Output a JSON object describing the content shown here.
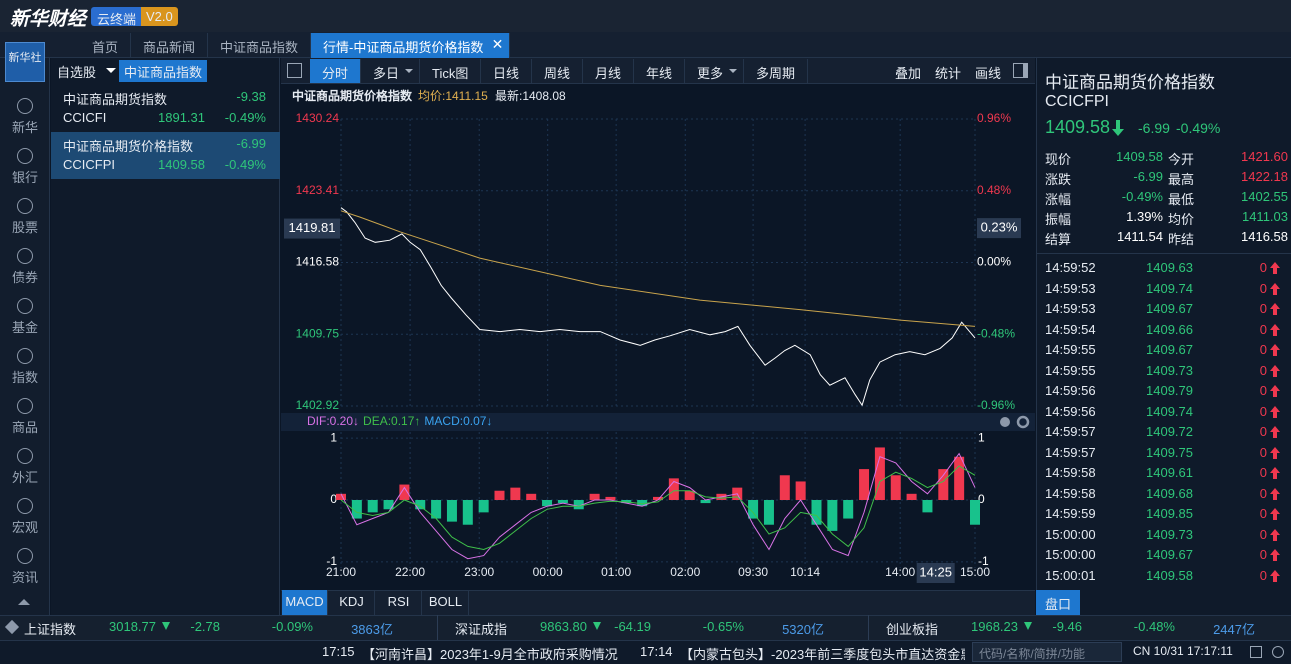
{
  "header": {
    "logo": "新华财经",
    "badge": "云终端",
    "version": "V2.0"
  },
  "tabs": {
    "items": [
      "首页",
      "商品新闻",
      "中证商品指数",
      "行情-中证商品期货价格指数"
    ],
    "active": 3
  },
  "nav": {
    "logo": "新华社",
    "items": [
      "新华",
      "银行",
      "股票",
      "债券",
      "基金",
      "指数",
      "商品",
      "外汇",
      "宏观",
      "资讯"
    ]
  },
  "watchlist": {
    "tabs": [
      "自选股",
      "中证商品指数"
    ],
    "active": 1,
    "selected": 1,
    "items": [
      {
        "name": "中证商品期货指数",
        "change": "-9.38",
        "code": "CCICFI",
        "price": "1891.31",
        "pct": "-0.49%"
      },
      {
        "name": "中证商品期货价格指数",
        "change": "-6.99",
        "code": "CCICFPI",
        "price": "1409.58",
        "pct": "-0.49%"
      }
    ]
  },
  "toolbar": {
    "items": [
      {
        "label": "分时"
      },
      {
        "label": "多日",
        "menu": true
      },
      {
        "label": "Tick图"
      },
      {
        "label": "日线"
      },
      {
        "label": "周线"
      },
      {
        "label": "月线"
      },
      {
        "label": "年线"
      },
      {
        "label": "更多",
        "menu": true
      },
      {
        "label": "多周期"
      }
    ],
    "active": 0,
    "tools": [
      "叠加",
      "统计",
      "画线"
    ]
  },
  "chart_header": {
    "name": "中证商品期货价格指数",
    "avg": "均价:1411.15",
    "last": "最新:1408.08"
  },
  "chart_data": [
    {
      "type": "line",
      "xlim": [
        0,
        100
      ],
      "xticks": [
        {
          "value": 0,
          "label": "21:00"
        },
        {
          "value": 10.9,
          "label": "22:00"
        },
        {
          "value": 21.8,
          "label": "23:00"
        },
        {
          "value": 32.6,
          "label": "00:00"
        },
        {
          "value": 43.4,
          "label": "01:00"
        },
        {
          "value": 54.3,
          "label": "02:00"
        },
        {
          "value": 65,
          "label": "09:30"
        },
        {
          "value": 73.2,
          "label": "10:14"
        },
        {
          "value": 88.2,
          "label": "14:00"
        },
        {
          "value": 100,
          "label": "15:00"
        }
      ],
      "ylim": [
        1402.92,
        1430.24
      ],
      "yticks": [
        1402.92,
        1409.75,
        1416.58,
        1423.41,
        1430.24
      ],
      "y2lim": [
        -0.96,
        0.96
      ],
      "y2ticks": [
        {
          "value": -0.96,
          "label": "-0.96%"
        },
        {
          "value": -0.48,
          "label": "-0.48%"
        },
        {
          "value": 0,
          "label": "0.00%"
        },
        {
          "value": 0.48,
          "label": "0.48%"
        },
        {
          "value": 0.96,
          "label": "0.96%"
        }
      ],
      "grid": true,
      "series": [
        {
          "color": "#ffffff",
          "x": [
            0,
            0.9,
            2.2,
            3.8,
            5.4,
            7.7,
            9.6,
            10.9,
            12.5,
            14.2,
            15.8,
            17.4,
            19.7,
            21.9,
            25.1,
            28.2,
            31.4,
            34.5,
            37.7,
            40.9,
            44,
            47.2,
            49.5,
            51.9,
            55,
            58.2,
            60.6,
            62.6,
            64.5,
            66.9,
            68.5,
            70,
            71.6,
            74,
            75.6,
            77.1,
            79.5,
            81.1,
            82.2,
            83.4,
            85,
            87.4,
            89.7,
            92.1,
            94.5,
            96.4,
            97.9,
            100
          ],
          "values": [
            1421.8,
            1421.4,
            1420.4,
            1418.9,
            1418.5,
            1418.7,
            1419.3,
            1418.5,
            1417.8,
            1416.1,
            1414.4,
            1413.2,
            1411.6,
            1410.2,
            1410,
            1410.2,
            1410,
            1410.2,
            1410,
            1410,
            1409.2,
            1408.7,
            1409.2,
            1409.6,
            1410.2,
            1409.7,
            1410,
            1410.5,
            1408.7,
            1406.8,
            1407.5,
            1408.2,
            1408.7,
            1407.8,
            1405.9,
            1404.9,
            1405.6,
            1404,
            1403,
            1405.4,
            1407.1,
            1407.8,
            1408.1,
            1407.8,
            1408.4,
            1409.4,
            1410.9,
            1409.4
          ]
        },
        {
          "color": "#c9a44c",
          "x": [
            0,
            3,
            9.3,
            21.9,
            40.9,
            56.6,
            72.4,
            88.2,
            100
          ],
          "values": [
            1421.5,
            1420.9,
            1419.5,
            1417,
            1414.4,
            1413,
            1412.1,
            1411.1,
            1410.5
          ]
        }
      ],
      "crosshair": {
        "price": 1419.81,
        "pct": {
          "value": 0.23,
          "label": "0.23%"
        },
        "time": {
          "value": 93.8,
          "label": "14:25"
        }
      }
    },
    {
      "type": "macd",
      "xlim": [
        0,
        100
      ],
      "ylim": [
        -1.1,
        1.1
      ],
      "yticks": [
        -1,
        0,
        1
      ],
      "header": [
        "DIF:0.20↓",
        "DEA:0.17↑",
        "MACD:0.07↓"
      ],
      "x": [
        0,
        2.5,
        5,
        7.5,
        10,
        12.5,
        15,
        17.5,
        20,
        22.5,
        25,
        27.5,
        30,
        32.5,
        35,
        37.5,
        40,
        42.5,
        45,
        47.5,
        50,
        52.5,
        55,
        57.5,
        60,
        62.5,
        65,
        67.5,
        70,
        72.5,
        75,
        77.5,
        80,
        82.5,
        85,
        87.5,
        90,
        92.5,
        95,
        97.5,
        100
      ],
      "series": [
        {
          "type": "line",
          "color": "#d872e6",
          "values": [
            0.1,
            -0.4,
            -0.3,
            -0.2,
            0.2,
            -0.2,
            -0.5,
            -0.8,
            -0.95,
            -0.9,
            -0.6,
            -0.4,
            -0.2,
            -0.1,
            -0.05,
            -0.1,
            0,
            0,
            -0.05,
            -0.1,
            0,
            0.3,
            0.2,
            0,
            0.05,
            0.1,
            -0.4,
            -0.8,
            -0.3,
            0,
            -0.4,
            -0.8,
            -0.9,
            -0.2,
            0.7,
            0.6,
            0.3,
            0.1,
            0.4,
            0.75,
            0.2
          ]
        },
        {
          "type": "line",
          "color": "#3fbf4a",
          "values": [
            0,
            -0.2,
            -0.25,
            -0.2,
            0,
            -0.1,
            -0.3,
            -0.6,
            -0.75,
            -0.8,
            -0.7,
            -0.5,
            -0.3,
            -0.15,
            -0.1,
            -0.1,
            -0.05,
            -0.02,
            -0.03,
            -0.06,
            -0.03,
            0.15,
            0.15,
            0.05,
            0.03,
            0.05,
            -0.2,
            -0.55,
            -0.45,
            -0.2,
            -0.25,
            -0.55,
            -0.75,
            -0.45,
            0.3,
            0.45,
            0.35,
            0.2,
            0.3,
            0.55,
            0.4
          ]
        },
        {
          "type": "bar",
          "color": "#3aa3f0",
          "colors": [
            "#f0384f",
            "#18c28c"
          ],
          "values": [
            0.1,
            -0.3,
            -0.2,
            -0.15,
            0.25,
            -0.15,
            -0.3,
            -0.35,
            -0.4,
            -0.2,
            0.15,
            0.2,
            0.1,
            -0.1,
            -0.05,
            -0.15,
            0.1,
            0.05,
            -0.05,
            -0.1,
            0.05,
            0.35,
            0.15,
            -0.05,
            0.1,
            0.2,
            -0.3,
            -0.4,
            0.4,
            0.3,
            -0.4,
            -0.5,
            -0.3,
            0.5,
            0.85,
            0.4,
            0.1,
            -0.2,
            0.5,
            0.7,
            -0.4
          ]
        }
      ]
    }
  ],
  "indicator_tabs": {
    "items": [
      "MACD",
      "KDJ",
      "RSI",
      "BOLL"
    ],
    "active": 0
  },
  "quote": {
    "title": "中证商品期货价格指数",
    "code": "CCICFPI",
    "price": "1409.58",
    "change": "-6.99",
    "pct": "-0.49%",
    "rows": [
      [
        "现价",
        "1409.58",
        "今开",
        "1421.60"
      ],
      [
        "涨跌",
        "-6.99",
        "最高",
        "1422.18"
      ],
      [
        "涨幅",
        "-0.49%",
        "最低",
        "1402.55"
      ],
      [
        "振幅",
        "1.39%",
        "均价",
        "1411.03"
      ],
      [
        "结算",
        "1411.54",
        "昨结",
        "1416.58"
      ]
    ],
    "colors": [
      [
        "#2fc67a",
        "#f0384f"
      ],
      [
        "#2fc67a",
        "#f0384f"
      ],
      [
        "#2fc67a",
        "#2fc67a"
      ],
      [
        "#ffffff",
        "#2fc67a"
      ],
      [
        "#ffffff",
        "#ffffff"
      ]
    ]
  },
  "ticks": [
    [
      "14:59:52",
      "1409.63",
      "0"
    ],
    [
      "14:59:53",
      "1409.74",
      "0"
    ],
    [
      "14:59:53",
      "1409.67",
      "0"
    ],
    [
      "14:59:54",
      "1409.66",
      "0"
    ],
    [
      "14:59:55",
      "1409.67",
      "0"
    ],
    [
      "14:59:55",
      "1409.73",
      "0"
    ],
    [
      "14:59:56",
      "1409.79",
      "0"
    ],
    [
      "14:59:56",
      "1409.74",
      "0"
    ],
    [
      "14:59:57",
      "1409.72",
      "0"
    ],
    [
      "14:59:57",
      "1409.75",
      "0"
    ],
    [
      "14:59:58",
      "1409.61",
      "0"
    ],
    [
      "14:59:58",
      "1409.68",
      "0"
    ],
    [
      "14:59:59",
      "1409.85",
      "0"
    ],
    [
      "15:00:00",
      "1409.73",
      "0"
    ],
    [
      "15:00:00",
      "1409.67",
      "0"
    ],
    [
      "15:00:01",
      "1409.58",
      "0"
    ]
  ],
  "panel_button": "盘口",
  "indices": [
    {
      "name": "上证指数",
      "value": "3018.77",
      "change": "-2.78",
      "pct": "-0.09%",
      "amount": "3863亿"
    },
    {
      "name": "深证成指",
      "value": "9863.80",
      "change": "-64.19",
      "pct": "-0.65%",
      "amount": "5320亿"
    },
    {
      "name": "创业板指",
      "value": "1968.23",
      "change": "-9.46",
      "pct": "-0.48%",
      "amount": "2447亿"
    }
  ],
  "news": [
    {
      "time": "17:15",
      "text": "【河南许昌】2023年1-9月全市政府采购情况"
    },
    {
      "time": "17:14",
      "text": "【内蒙古包头】-2023年前三季度包头市直达资金惠企利"
    }
  ],
  "search_placeholder": "代码/名称/简拼/功能",
  "status": "CN 10/31 17:17:11"
}
